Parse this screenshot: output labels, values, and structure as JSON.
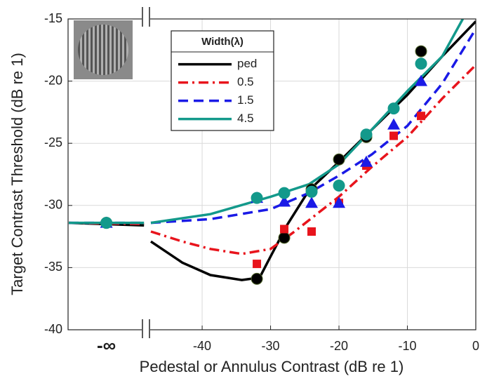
{
  "chart_data": {
    "type": "line",
    "xlabel": "Pedestal or Annulus Contrast (dB re 1)",
    "ylabel": "Target Contrast Threshold (dB re 1)",
    "legend_title": "Width(λ)",
    "legend": "upper-center",
    "grid": true,
    "xlim": [
      -59.6,
      0
    ],
    "ylim": [
      -40,
      -15
    ],
    "xticks": [
      {
        "value": -54,
        "label": "-∞"
      },
      -40,
      -30,
      -20,
      -10,
      0
    ],
    "yticks": [
      -40,
      -35,
      -30,
      -25,
      -20,
      -15
    ],
    "x": [
      -54,
      -32,
      -28,
      -24,
      -20,
      -16,
      -12,
      -8
    ],
    "series": [
      {
        "name": "ped",
        "color": "#000000",
        "marker": "circle",
        "linestyle": "solid",
        "values": [
          -31.4,
          -35.9,
          -32.6,
          -28.7,
          -26.3,
          -24.5,
          null,
          -17.6
        ],
        "fit_x": [
          -59.5,
          -48.5,
          null,
          -47.5,
          -42.9,
          -38.8,
          -34.2,
          -31.6,
          -30,
          -27.5,
          -24.4,
          -20,
          -15.2,
          -10,
          -4.9,
          0
        ],
        "fit_y": [
          -31.4,
          -31.6,
          null,
          -32.9,
          -34.6,
          -35.6,
          -36.0,
          -35.8,
          -34.1,
          -31.5,
          -28.8,
          -26.5,
          -23.9,
          -21.1,
          -18.0,
          -15.2
        ]
      },
      {
        "name": "0.5",
        "color": "#e8141c",
        "marker": "square",
        "linestyle": "dashdot",
        "values": [
          -31.4,
          -34.7,
          -31.9,
          -32.1,
          -29.8,
          -26.8,
          -24.4,
          -22.8
        ],
        "fit_x": [
          -59.5,
          -48.5,
          null,
          -47.5,
          -42.9,
          -38.8,
          -34.2,
          -30,
          -26.5,
          -20,
          -15.2,
          -10,
          -4.9,
          0
        ],
        "fit_y": [
          -31.4,
          -31.5,
          null,
          -32.1,
          -32.9,
          -33.5,
          -33.9,
          -33.5,
          -32.1,
          -29.3,
          -26.9,
          -24.5,
          -21.4,
          -18.7
        ]
      },
      {
        "name": "1.5",
        "color": "#1a1ae6",
        "marker": "triangle",
        "linestyle": "dashed",
        "values": [
          -31.4,
          -29.4,
          -29.7,
          -29.8,
          -29.8,
          -26.5,
          -23.5,
          -20.0
        ],
        "fit_x": [
          -59.5,
          -48.5,
          null,
          -47.5,
          -38.8,
          -30,
          -24.4,
          -20,
          -15.2,
          -10,
          -4.9,
          0
        ],
        "fit_y": [
          -31.4,
          -31.4,
          null,
          -31.4,
          -31.1,
          -30.3,
          -29.0,
          -27.6,
          -25.9,
          -23.6,
          -20.2,
          -15.8
        ]
      },
      {
        "name": "4.5",
        "color": "#13998b",
        "marker": "circle",
        "linestyle": "solid",
        "values": [
          -31.4,
          -29.4,
          -29.0,
          -28.9,
          -28.4,
          -24.3,
          -22.2,
          -18.6
        ],
        "fit_x": [
          -59.5,
          -48.5,
          null,
          -47.5,
          -38.8,
          -30,
          -24.4,
          -20,
          -15.2,
          -10,
          -4.9,
          -1.9
        ],
        "fit_y": [
          -31.4,
          -31.4,
          null,
          -31.4,
          -30.7,
          -29.3,
          -28.3,
          -26.7,
          -23.9,
          -20.8,
          -18.0,
          -15.0
        ]
      }
    ]
  }
}
